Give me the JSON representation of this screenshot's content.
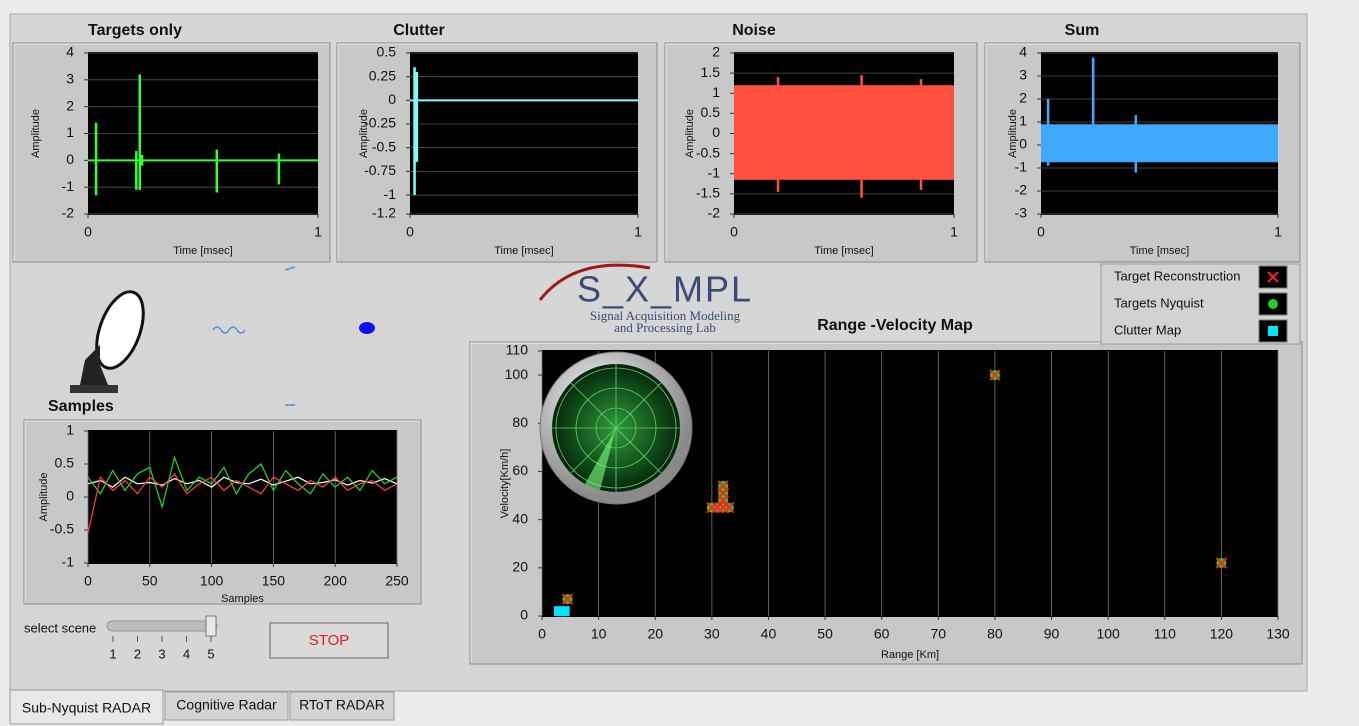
{
  "tabs": {
    "items": [
      "Sub-Nyquist RADAR",
      "Cognitive Radar",
      "RToT RADAR"
    ],
    "selected": 0
  },
  "plots": [
    {
      "type": "waveform",
      "title": "Targets only",
      "x_label": "Time [msec]",
      "y_label": "Amplitude",
      "xlim": [
        0,
        1
      ],
      "xticks": [
        0,
        1
      ],
      "ylim": [
        -2,
        4
      ],
      "yticks": [
        4,
        3,
        2,
        1,
        0,
        -1,
        -2
      ],
      "grid": "horizontal",
      "color": "#33ff33",
      "baseline": 0,
      "spikes": [
        {
          "x": 0.035,
          "max": 1.4,
          "min": -1.3
        },
        {
          "x": 0.21,
          "max": 0.35,
          "min": -1.1
        },
        {
          "x": 0.225,
          "max": 3.2,
          "min": -1.1
        },
        {
          "x": 0.235,
          "max": 0.2,
          "min": -0.2
        },
        {
          "x": 0.56,
          "max": 0.4,
          "min": -1.2
        },
        {
          "x": 0.83,
          "max": 0.25,
          "min": -0.9
        }
      ]
    },
    {
      "type": "waveform",
      "title": "Clutter",
      "x_label": "Time [msec]",
      "y_label": "Amplitude",
      "xlim": [
        0,
        1
      ],
      "xticks": [
        0,
        1
      ],
      "ylim": [
        -1.2,
        0.5
      ],
      "yticks": [
        0.5,
        0.25,
        0,
        -0.25,
        -0.5,
        -0.75,
        -1,
        -1.2
      ],
      "grid": "horizontal",
      "color": "#80ffff",
      "baseline": 0,
      "spikes": [
        {
          "x": 0.02,
          "max": 0.35,
          "min": -1
        },
        {
          "x": 0.03,
          "max": 0.3,
          "min": -0.65
        }
      ]
    },
    {
      "type": "waveform",
      "title": "Noise",
      "x_label": "Time [msec]",
      "y_label": "Amplitude",
      "xlim": [
        0,
        1
      ],
      "xticks": [
        0,
        1
      ],
      "ylim": [
        -2,
        2
      ],
      "yticks": [
        2,
        1.5,
        1,
        0.5,
        0,
        -0.5,
        -1,
        -1.5,
        -2
      ],
      "grid": "horizontal",
      "color": "#ff5040",
      "band_min": -1.15,
      "band_max": 1.2,
      "spikes": [
        {
          "x": 0.2,
          "max": 1.4,
          "min": -1.45
        },
        {
          "x": 0.58,
          "max": 1.45,
          "min": -1.6
        },
        {
          "x": 0.85,
          "max": 1.35,
          "min": -1.4
        }
      ]
    },
    {
      "type": "waveform",
      "title": "Sum",
      "x_label": "Time [msec]",
      "y_label": "Amplitude",
      "xlim": [
        0,
        1
      ],
      "xticks": [
        0,
        1
      ],
      "ylim": [
        -3,
        4
      ],
      "yticks": [
        4,
        3,
        2,
        1,
        0,
        -1,
        -2,
        -3
      ],
      "grid": "horizontal",
      "color": "#3fa9ff",
      "band_min": -0.75,
      "band_max": 0.9,
      "spikes": [
        {
          "x": 0.03,
          "max": 2,
          "min": -0.9
        },
        {
          "x": 0.22,
          "max": 3.8,
          "min": -0.6
        },
        {
          "x": 0.4,
          "max": 1.3,
          "min": -1.2
        }
      ]
    }
  ],
  "samples": {
    "type": "line",
    "title": "Samples",
    "x_label": "Samples",
    "y_label": "Amplitude",
    "xlim": [
      0,
      250
    ],
    "xticks": [
      0,
      50,
      100,
      150,
      200,
      250
    ],
    "ylim": [
      -1,
      1
    ],
    "yticks": [
      1,
      0.5,
      0,
      -0.5,
      -1
    ],
    "grid": "vertical",
    "x": [
      0,
      10,
      20,
      30,
      40,
      50,
      60,
      70,
      80,
      90,
      100,
      110,
      120,
      130,
      140,
      150,
      160,
      170,
      180,
      190,
      200,
      210,
      220,
      230,
      240,
      250
    ],
    "series": [
      {
        "color": "#ffffff",
        "values": [
          0.2,
          0.25,
          0.15,
          0.3,
          0.2,
          0.22,
          0.18,
          0.28,
          0.2,
          0.25,
          0.15,
          0.3,
          0.22,
          0.2,
          0.27,
          0.18,
          0.24,
          0.3,
          0.2,
          0.22,
          0.26,
          0.18,
          0.25,
          0.21,
          0.28,
          0.2
        ]
      },
      {
        "color": "#22dd22",
        "values": [
          0.3,
          0.05,
          0.4,
          0.1,
          0.35,
          0.45,
          -0.15,
          0.6,
          0.1,
          0.3,
          0.2,
          0.45,
          0.05,
          0.35,
          0.5,
          0.1,
          0.4,
          0.2,
          0.05,
          0.35,
          0.15,
          0.3,
          0.1,
          0.4,
          0.2,
          0.3
        ]
      },
      {
        "color": "#ff4040",
        "values": [
          -0.55,
          0.3,
          0.1,
          0.25,
          0.05,
          0.3,
          0.15,
          0.35,
          0.05,
          0.2,
          0.3,
          0.1,
          0.25,
          0.15,
          0.05,
          0.3,
          0.2,
          0.1,
          0.25,
          0.15,
          0.3,
          0.1,
          0.2,
          0.25,
          0.1,
          0.2
        ]
      }
    ]
  },
  "map": {
    "type": "scatter",
    "title": "Range -Velocity Map",
    "x_label": "Range [Km]",
    "y_label": "Velocity[Km/h]",
    "xlim": [
      0,
      130
    ],
    "xticks": [
      0,
      10,
      20,
      30,
      40,
      50,
      60,
      70,
      80,
      90,
      100,
      110,
      120,
      130
    ],
    "ylim": [
      0,
      110
    ],
    "yticks": [
      0,
      20,
      40,
      60,
      80,
      100,
      110
    ],
    "grid": "vertical",
    "series": [
      {
        "name": "Clutter Map",
        "color": "#00e5ff",
        "marker": "square",
        "x": [
          3,
          4
        ],
        "y": [
          2,
          2
        ]
      },
      {
        "name": "Targets Nyquist",
        "color": "#22cc22",
        "marker": "dot",
        "x": [
          4.5,
          30,
          31,
          32,
          33,
          32,
          32,
          32,
          80,
          120
        ],
        "y": [
          7,
          45,
          45,
          45,
          45,
          48,
          51,
          54,
          100,
          22
        ]
      },
      {
        "name": "Target Reconstruction",
        "color": "#ff2020",
        "marker": "x",
        "x": [
          4.5,
          30,
          31,
          32,
          33,
          32,
          32,
          32,
          80,
          120
        ],
        "y": [
          7,
          45,
          45,
          45,
          45,
          48,
          51,
          54,
          100,
          22
        ]
      }
    ]
  },
  "logo": {
    "name": "S_X_MPL",
    "line1": "Signal Acquisition Modeling",
    "line2": "and Processing Lab"
  },
  "scene_slider": {
    "label": "select scene",
    "ticks": [
      1,
      2,
      3,
      4,
      5
    ],
    "value": 5
  },
  "stop_button": "STOP"
}
